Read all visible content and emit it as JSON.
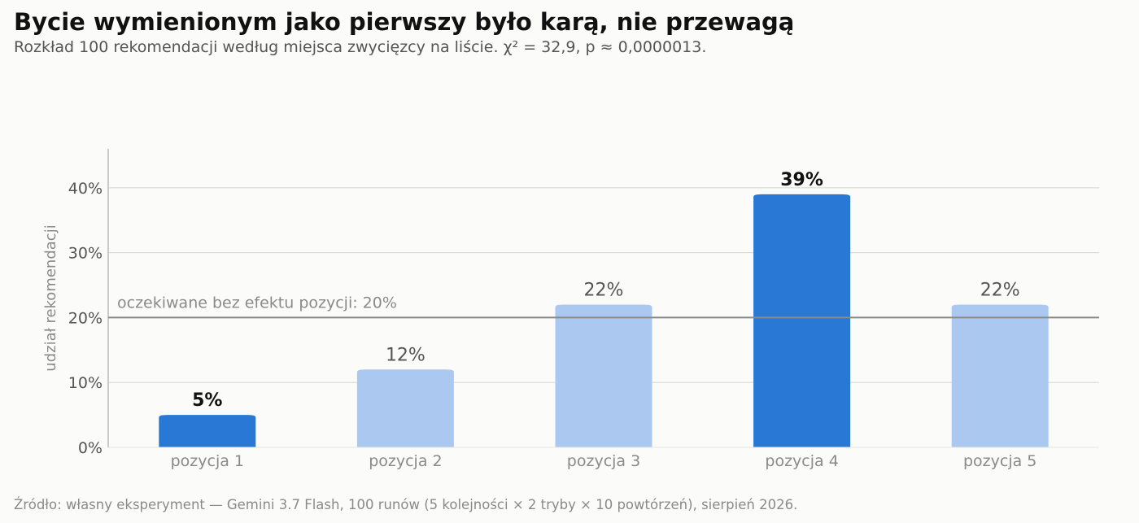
{
  "header": {
    "title": "Bycie wymienionym jako pierwszy było karą, nie przewagą",
    "subtitle": "Rozkład 100 rekomendacji według miejsca zwycięzcy na liście. χ² = 32,9, p ≈ 0,0000013."
  },
  "footer": {
    "source": "Źródło: własny eksperyment — Gemini 3.7 Flash, 100 runów (5 kolejności × 2 tryby × 10 powtórzeń), sierpień 2026."
  },
  "colors": {
    "highlight": "#2a78d6",
    "normal": "#abc9f0",
    "reference_line": "#8a8a8a",
    "grid": "#ddddd5"
  },
  "chart_data": {
    "type": "bar",
    "categories": [
      "pozycja 1",
      "pozycja 2",
      "pozycja 3",
      "pozycja 4",
      "pozycja 5"
    ],
    "values": [
      5,
      12,
      22,
      39,
      22
    ],
    "value_labels": [
      "5%",
      "12%",
      "22%",
      "39%",
      "22%"
    ],
    "highlighted": [
      true,
      false,
      false,
      true,
      false
    ],
    "ylabel": "udział rekomendacji",
    "ylim": [
      0,
      46
    ],
    "yticks": [
      0,
      10,
      20,
      30,
      40
    ],
    "ytick_labels": [
      "0%",
      "10%",
      "20%",
      "30%",
      "40%"
    ],
    "grid": true,
    "reference_line": {
      "value": 20,
      "label": "oczekiwane bez efektu pozycji: 20%"
    }
  }
}
